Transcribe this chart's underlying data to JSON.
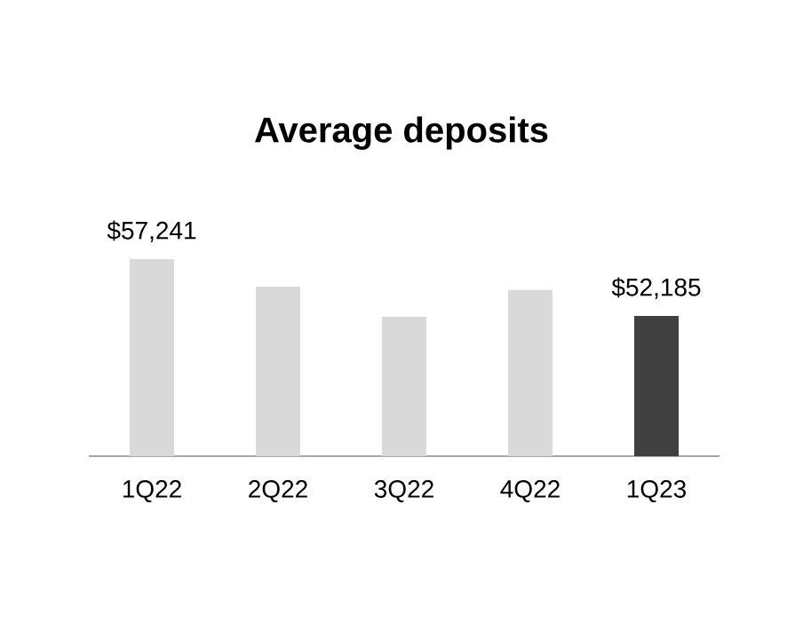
{
  "chart_data": {
    "type": "bar",
    "title": "Average deposits",
    "categories": [
      "1Q22",
      "2Q22",
      "3Q22",
      "4Q22",
      "1Q23"
    ],
    "values": [
      57241,
      54800,
      52100,
      54500,
      52185
    ],
    "value_labels": [
      "$57,241",
      null,
      null,
      null,
      "$52,185"
    ],
    "colors": [
      "#d9d9d9",
      "#d9d9d9",
      "#d9d9d9",
      "#d9d9d9",
      "#404040"
    ],
    "ylim": [
      39700,
      57241
    ]
  }
}
